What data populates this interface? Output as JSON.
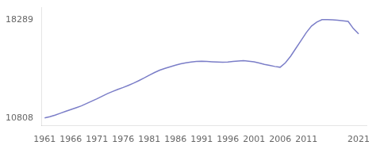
{
  "chart_data": {
    "type": "line",
    "x": [
      1961,
      1962,
      1963,
      1964,
      1965,
      1966,
      1967,
      1968,
      1969,
      1970,
      1971,
      1972,
      1973,
      1974,
      1975,
      1976,
      1977,
      1978,
      1979,
      1980,
      1981,
      1982,
      1983,
      1984,
      1985,
      1986,
      1987,
      1988,
      1989,
      1990,
      1991,
      1992,
      1993,
      1994,
      1995,
      1996,
      1997,
      1998,
      1999,
      2000,
      2001,
      2002,
      2003,
      2004,
      2005,
      2006,
      2007,
      2008,
      2009,
      2010,
      2011,
      2012,
      2013,
      2014,
      2015,
      2016,
      2017,
      2018,
      2019,
      2020,
      2021
    ],
    "values": [
      10808,
      10900,
      11020,
      11160,
      11300,
      11440,
      11580,
      11720,
      11900,
      12080,
      12260,
      12460,
      12650,
      12820,
      12980,
      13120,
      13280,
      13450,
      13640,
      13840,
      14060,
      14260,
      14440,
      14580,
      14700,
      14820,
      14920,
      15000,
      15060,
      15100,
      15120,
      15100,
      15080,
      15060,
      15040,
      15060,
      15100,
      15140,
      15160,
      15120,
      15080,
      14980,
      14880,
      14800,
      14720,
      14660,
      15000,
      15500,
      16100,
      16700,
      17300,
      17800,
      18100,
      18289,
      18289,
      18270,
      18240,
      18200,
      18150,
      17600,
      17200
    ],
    "color": "#7b7ec8",
    "xlim": [
      1960.5,
      2022.5
    ],
    "ylim": [
      10200,
      19200
    ],
    "xticks": [
      1961,
      1966,
      1971,
      1976,
      1981,
      1986,
      1991,
      1996,
      2001,
      2006,
      2011,
      2021
    ],
    "yticks": [
      18289,
      10808
    ],
    "grid": false
  }
}
